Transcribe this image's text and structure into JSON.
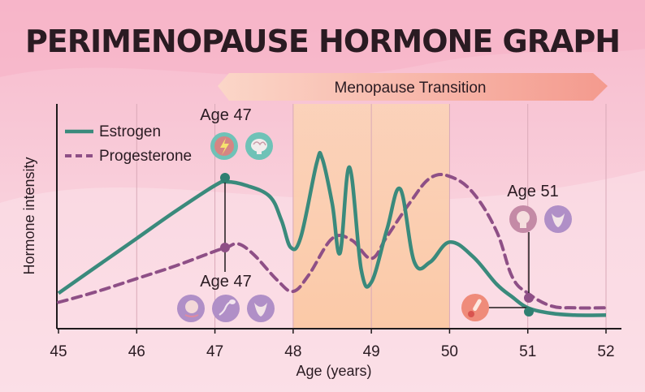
{
  "chart_data": {
    "type": "line",
    "title": "PERIMENOPAUSE HORMONE GRAPH",
    "xlabel": "Age (years)",
    "ylabel": "Hormone intensity",
    "xlim": [
      45,
      52
    ],
    "ylim": [
      0,
      10
    ],
    "xticks": [
      "45",
      "46",
      "47",
      "48",
      "49",
      "50",
      "51",
      "52"
    ],
    "grid": "vertical",
    "legend_position": "top-left",
    "series": [
      {
        "name": "Estrogen",
        "color": "#3a8a7c",
        "style": "solid",
        "x": [
          45,
          45.5,
          46,
          46.5,
          47,
          47.15,
          47.4,
          47.7,
          47.85,
          47.97,
          48.1,
          48.3,
          48.37,
          48.5,
          48.6,
          48.72,
          48.87,
          49.0,
          49.2,
          49.37,
          49.55,
          49.75,
          50.0,
          50.3,
          50.6,
          50.8,
          51.0,
          51.3,
          51.6,
          52.0
        ],
        "y": [
          1.5,
          3.0,
          4.5,
          6.0,
          7.4,
          7.6,
          7.4,
          6.8,
          5.5,
          4.0,
          4.6,
          8.6,
          8.9,
          6.4,
          3.7,
          8.4,
          2.8,
          2.1,
          5.0,
          7.2,
          3.2,
          3.2,
          4.3,
          3.5,
          2.0,
          1.3,
          0.7,
          0.4,
          0.3,
          0.3
        ]
      },
      {
        "name": "Progesterone",
        "color": "#8e4f86",
        "style": "dashed",
        "x": [
          45,
          45.5,
          46,
          46.5,
          47,
          47.15,
          47.3,
          47.5,
          47.8,
          48.0,
          48.2,
          48.5,
          48.75,
          49.0,
          49.2,
          49.5,
          49.75,
          50.0,
          50.3,
          50.6,
          50.8,
          51.0,
          51.3,
          51.6,
          52.0
        ],
        "y": [
          1.0,
          1.6,
          2.3,
          3.0,
          3.8,
          4.0,
          4.2,
          3.6,
          2.2,
          1.6,
          2.5,
          4.5,
          4.4,
          3.4,
          4.6,
          6.5,
          7.8,
          7.9,
          7.0,
          4.9,
          2.4,
          1.5,
          0.8,
          0.7,
          0.7
        ]
      }
    ],
    "shaded_region": {
      "x": [
        48,
        50
      ]
    },
    "annotations": [
      {
        "text": "Age 47",
        "x": 47,
        "series": "Estrogen",
        "icons": [
          "lightning-icon",
          "brain-icon"
        ]
      },
      {
        "text": "Age 47",
        "x": 47,
        "series": "Progesterone",
        "icons": [
          "head-icon",
          "sperm-icon",
          "uterus-icon"
        ]
      },
      {
        "text": "Age 51",
        "x": 51,
        "series": "Progesterone",
        "icons": [
          "head-profile-icon",
          "uterus-icon"
        ]
      },
      {
        "text": "",
        "x": 51,
        "series": "Estrogen",
        "icons": [
          "thermometer-icon"
        ]
      }
    ]
  },
  "banner": {
    "text": "Menopause Transition",
    "color": "#f49a8e"
  },
  "colors": {
    "background": "#f7c8d6",
    "shading": "#fbd0b4",
    "estrogen": "#3a8a7c",
    "progesterone": "#8e4f86",
    "axis": "#1f1a1c"
  }
}
